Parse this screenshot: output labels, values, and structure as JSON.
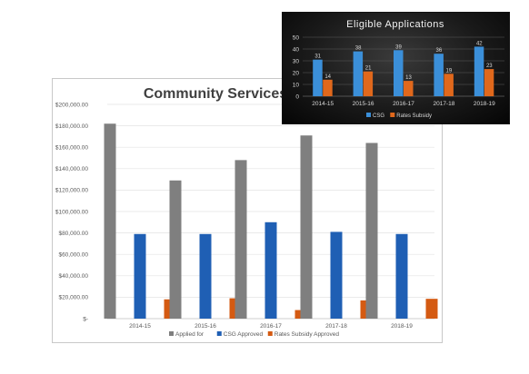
{
  "chart_data": [
    {
      "type": "bar",
      "title": "Community Services Grants",
      "categories": [
        "2014-15",
        "2015-16",
        "2016-17",
        "2017-18",
        "2018-19"
      ],
      "series": [
        {
          "name": "Applied for",
          "values": [
            182000,
            129000,
            148000,
            171000,
            164000
          ]
        },
        {
          "name": "CSG Approved",
          "values": [
            79000,
            79000,
            90000,
            81000,
            79000
          ]
        },
        {
          "name": "Rates Subsidy Approved",
          "values": [
            18000,
            19000,
            8000,
            17000,
            18500
          ]
        }
      ],
      "ylim": [
        0,
        200000
      ],
      "y_ticks": [
        "$-",
        "$20,000.00",
        "$40,000.00",
        "$60,000.00",
        "$80,000.00",
        "$100,000.00",
        "$120,000.00",
        "$140,000.00",
        "$160,000.00",
        "$180,000.00",
        "$200,000.00"
      ],
      "grid": true,
      "legend_position": "bottom",
      "colors": [
        "#7f7f7f",
        "#1f5fb4",
        "#d45a12"
      ]
    },
    {
      "type": "bar",
      "title": "Eligible Applications",
      "categories": [
        "2014-15",
        "2015-16",
        "2016-17",
        "2017-18",
        "2018-19"
      ],
      "series": [
        {
          "name": "CSG",
          "values": [
            31,
            38,
            39,
            36,
            42
          ]
        },
        {
          "name": "Rates Subsidy",
          "values": [
            14,
            21,
            13,
            19,
            23
          ]
        }
      ],
      "ylim": [
        0,
        50
      ],
      "y_ticks": [
        "0",
        "10",
        "20",
        "30",
        "40",
        "50"
      ],
      "grid": true,
      "legend_position": "bottom",
      "data_labels": true,
      "colors": [
        "#3b8fd9",
        "#e0681c"
      ]
    }
  ]
}
